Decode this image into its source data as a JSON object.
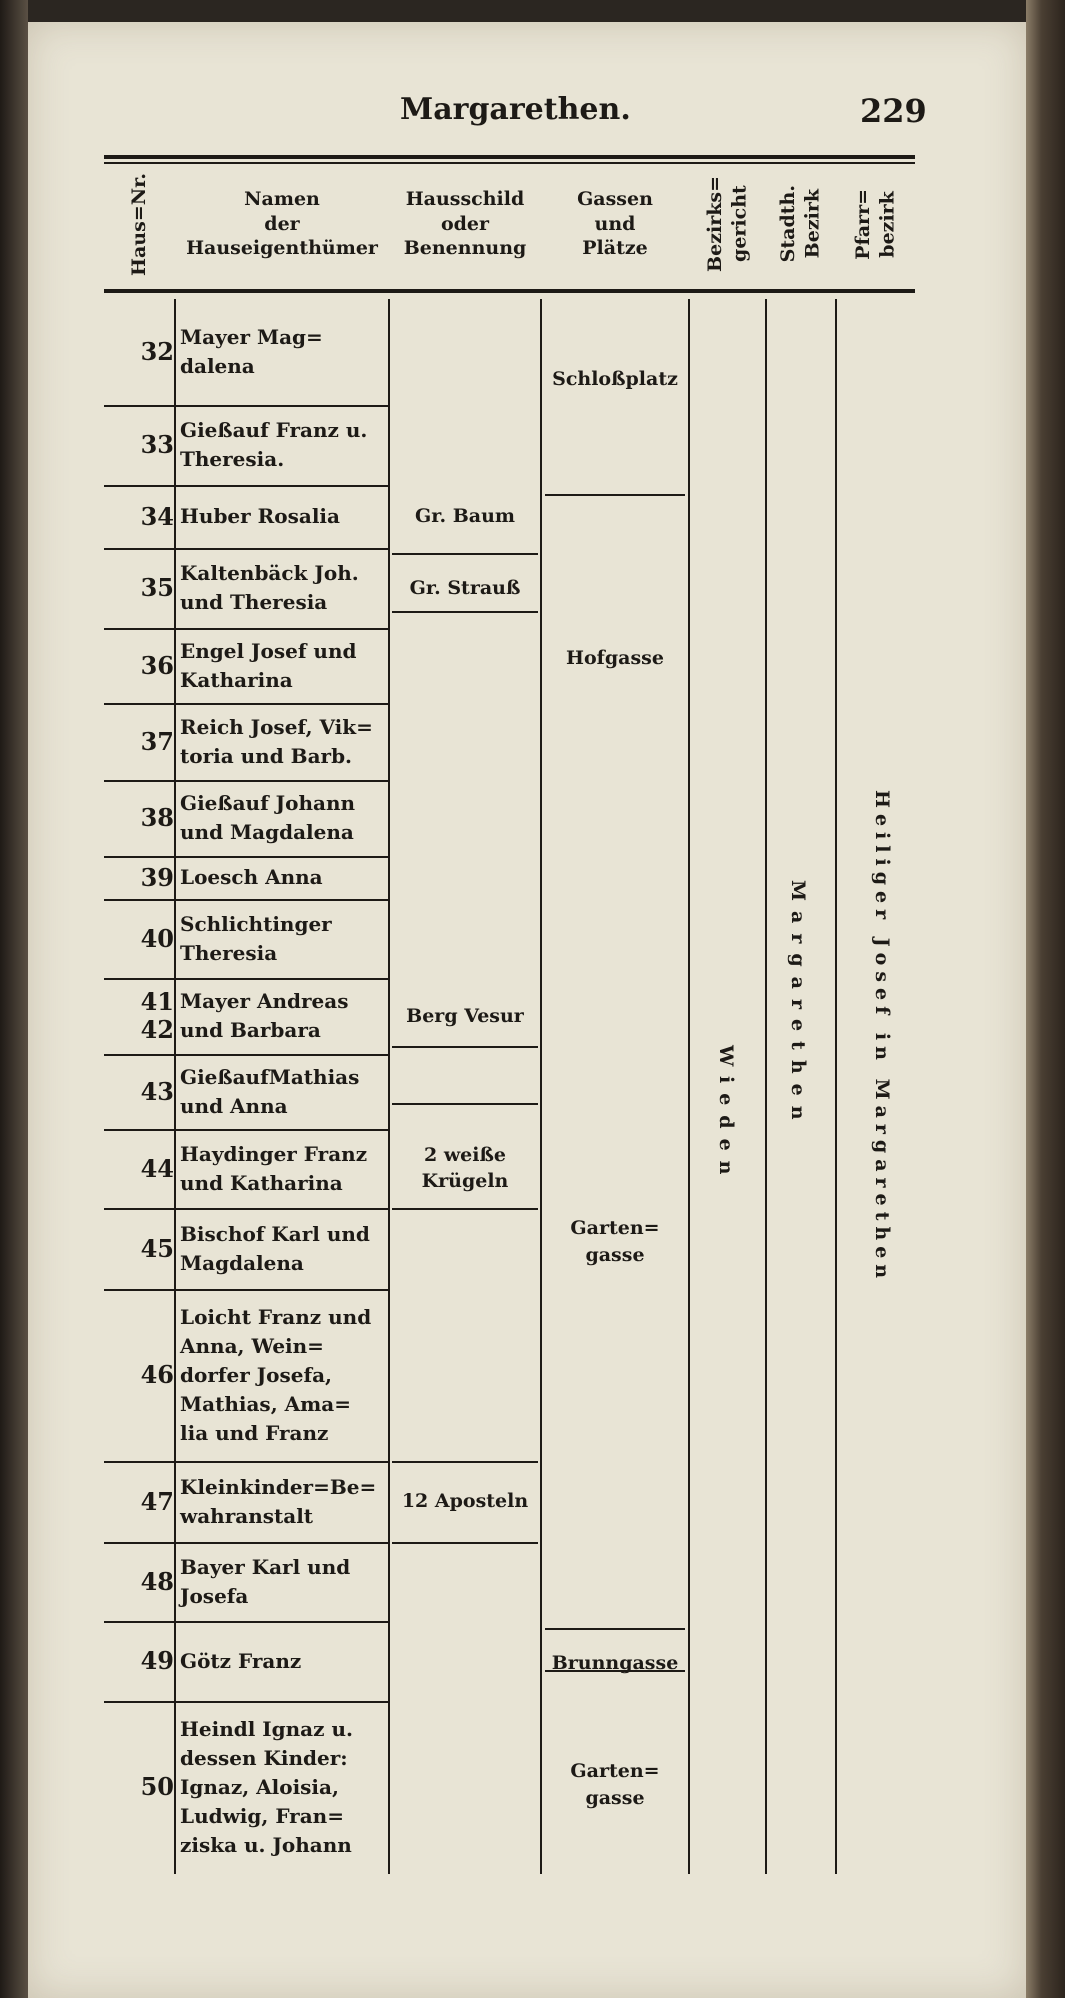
{
  "header": {
    "title": "Margarethen.",
    "page_number": "229"
  },
  "columns": {
    "house_no": "Haus=Nr.",
    "owners": "Namen\nder\nHauseigenthümer",
    "sign": "Hausschild\noder\nBenennung",
    "streets": "Gassen\nund\nPlätze",
    "district_court": "Bezirks=\ngericht",
    "city_district": "Stadth.\nBezirk",
    "parish": "Pfarr=\nbezirk"
  },
  "rows": [
    {
      "num": "32",
      "name": "Mayer Mag=\ndalena",
      "sign": ""
    },
    {
      "num": "33",
      "name": "Gießauf Franz u.\nTheresia.",
      "sign": ""
    },
    {
      "num": "34",
      "name": "Huber Rosalia",
      "sign": "Gr. Baum"
    },
    {
      "num": "35",
      "name": "Kaltenbäck Joh.\nund Theresia",
      "sign": "Gr. Strauß"
    },
    {
      "num": "36",
      "name": "Engel Josef und\nKatharina",
      "sign": ""
    },
    {
      "num": "37",
      "name": "Reich Josef, Vik=\ntoria und Barb.",
      "sign": ""
    },
    {
      "num": "38",
      "name": "Gießauf Johann\nund Magdalena",
      "sign": ""
    },
    {
      "num": "39",
      "name": "Loesch Anna",
      "sign": ""
    },
    {
      "num": "40",
      "name": "Schlichtinger\nTheresia",
      "sign": ""
    },
    {
      "num": "41\n42",
      "name": "Mayer Andreas\nund Barbara",
      "sign": "Berg Vesur"
    },
    {
      "num": "43",
      "name": "GießaufMathias\nund Anna",
      "sign": ""
    },
    {
      "num": "44",
      "name": "Haydinger Franz\nund Katharina",
      "sign": "2 weiße\nKrügeln"
    },
    {
      "num": "45",
      "name": "Bischof Karl und\nMagdalena",
      "sign": ""
    },
    {
      "num": "46",
      "name": "Loicht Franz und\nAnna, Wein=\ndorfer Josefa,\nMathias, Ama=\nlia und Franz",
      "sign": ""
    },
    {
      "num": "47",
      "name": "Kleinkinder=Be=\nwahranstalt",
      "sign": "12 Aposteln"
    },
    {
      "num": "48",
      "name": "Bayer Karl und\nJosefa",
      "sign": ""
    },
    {
      "num": "49",
      "name": "Götz Franz",
      "sign": ""
    },
    {
      "num": "50",
      "name": "Heindl Ignaz u.\ndessen Kinder:\nIgnaz, Aloisia,\nLudwig, Fran=\nziska u. Johann",
      "sign": ""
    }
  ],
  "streets": [
    "Schloßplatz",
    "Hofgasse",
    "Garten=\ngasse",
    "Brunngasse",
    "Garten=\ngasse"
  ],
  "district_court": "Wieden",
  "city_district": "Margarethen",
  "parish": "Heiliger Josef in Margarethen"
}
